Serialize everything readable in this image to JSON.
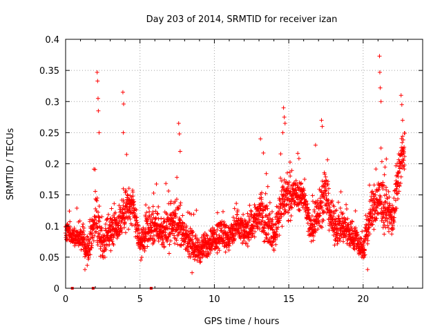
{
  "chart_data": {
    "type": "scatter",
    "title": "Day 203 of 2014, SRMTID for receiver izan",
    "xlabel": "GPS time / hours",
    "ylabel": "SRMTID / TECUs",
    "xlim": [
      0,
      24
    ],
    "ylim": [
      0,
      0.4
    ],
    "grid": true,
    "marker": "+",
    "marker_color": "#ff0000",
    "xticks": [
      0,
      5,
      10,
      15,
      20
    ],
    "xtick_labels": [
      "0",
      "5",
      "10",
      "15",
      "20"
    ],
    "yticks": [
      0,
      0.05,
      0.1,
      0.15,
      0.2,
      0.25,
      0.3,
      0.35,
      0.4
    ],
    "ytick_labels": [
      "0",
      "0.05",
      "0.1",
      "0.15",
      "0.2",
      "0.25",
      "0.3",
      "0.35",
      "0.4"
    ],
    "zero_markers_x": [
      0.45,
      1.85,
      5.75
    ],
    "series": [
      {
        "name": "SRMTID",
        "profile_hours": [
          0,
          0.5,
          1.0,
          1.5,
          2.0,
          2.5,
          3.0,
          3.5,
          4.0,
          4.5,
          5.0,
          5.5,
          6.0,
          6.5,
          7.0,
          7.5,
          8.0,
          8.5,
          9.0,
          9.5,
          10.0,
          10.5,
          11.0,
          11.5,
          12.0,
          12.5,
          13.0,
          13.5,
          14.0,
          14.5,
          15.0,
          15.5,
          16.0,
          16.5,
          17.0,
          17.5,
          18.0,
          18.5,
          19.0,
          19.5,
          20.0,
          20.5,
          21.0,
          21.5,
          22.0,
          22.5,
          22.8
        ],
        "profile_mean": [
          0.095,
          0.08,
          0.085,
          0.06,
          0.12,
          0.07,
          0.1,
          0.1,
          0.13,
          0.13,
          0.07,
          0.09,
          0.1,
          0.09,
          0.1,
          0.11,
          0.08,
          0.07,
          0.06,
          0.07,
          0.08,
          0.09,
          0.08,
          0.1,
          0.09,
          0.1,
          0.12,
          0.11,
          0.08,
          0.14,
          0.15,
          0.15,
          0.15,
          0.09,
          0.13,
          0.15,
          0.1,
          0.1,
          0.09,
          0.08,
          0.06,
          0.12,
          0.14,
          0.13,
          0.11,
          0.2,
          0.22
        ],
        "profile_spread": [
          0.03,
          0.02,
          0.03,
          0.03,
          0.07,
          0.03,
          0.05,
          0.04,
          0.06,
          0.04,
          0.03,
          0.04,
          0.04,
          0.03,
          0.05,
          0.05,
          0.03,
          0.03,
          0.03,
          0.03,
          0.03,
          0.04,
          0.03,
          0.04,
          0.03,
          0.04,
          0.05,
          0.05,
          0.03,
          0.06,
          0.05,
          0.04,
          0.03,
          0.04,
          0.05,
          0.05,
          0.04,
          0.04,
          0.04,
          0.03,
          0.03,
          0.05,
          0.06,
          0.05,
          0.04,
          0.06,
          0.05
        ],
        "extreme_points": [
          {
            "x": 2.12,
            "y": 0.347
          },
          {
            "x": 2.15,
            "y": 0.333
          },
          {
            "x": 2.18,
            "y": 0.305
          },
          {
            "x": 2.2,
            "y": 0.285
          },
          {
            "x": 2.25,
            "y": 0.25
          },
          {
            "x": 3.85,
            "y": 0.315
          },
          {
            "x": 3.9,
            "y": 0.296
          },
          {
            "x": 3.88,
            "y": 0.25
          },
          {
            "x": 7.6,
            "y": 0.265
          },
          {
            "x": 7.65,
            "y": 0.248
          },
          {
            "x": 7.7,
            "y": 0.22
          },
          {
            "x": 14.65,
            "y": 0.29
          },
          {
            "x": 14.7,
            "y": 0.275
          },
          {
            "x": 14.75,
            "y": 0.265
          },
          {
            "x": 14.6,
            "y": 0.25
          },
          {
            "x": 17.2,
            "y": 0.27
          },
          {
            "x": 17.25,
            "y": 0.26
          },
          {
            "x": 21.1,
            "y": 0.373
          },
          {
            "x": 21.12,
            "y": 0.347
          },
          {
            "x": 21.15,
            "y": 0.322
          },
          {
            "x": 21.2,
            "y": 0.3
          },
          {
            "x": 22.55,
            "y": 0.31
          },
          {
            "x": 22.6,
            "y": 0.295
          },
          {
            "x": 22.65,
            "y": 0.27
          },
          {
            "x": 13.1,
            "y": 0.24
          },
          {
            "x": 16.8,
            "y": 0.23
          },
          {
            "x": 4.1,
            "y": 0.215
          },
          {
            "x": 20.3,
            "y": 0.03
          },
          {
            "x": 1.3,
            "y": 0.03
          },
          {
            "x": 8.5,
            "y": 0.025
          }
        ]
      }
    ]
  }
}
